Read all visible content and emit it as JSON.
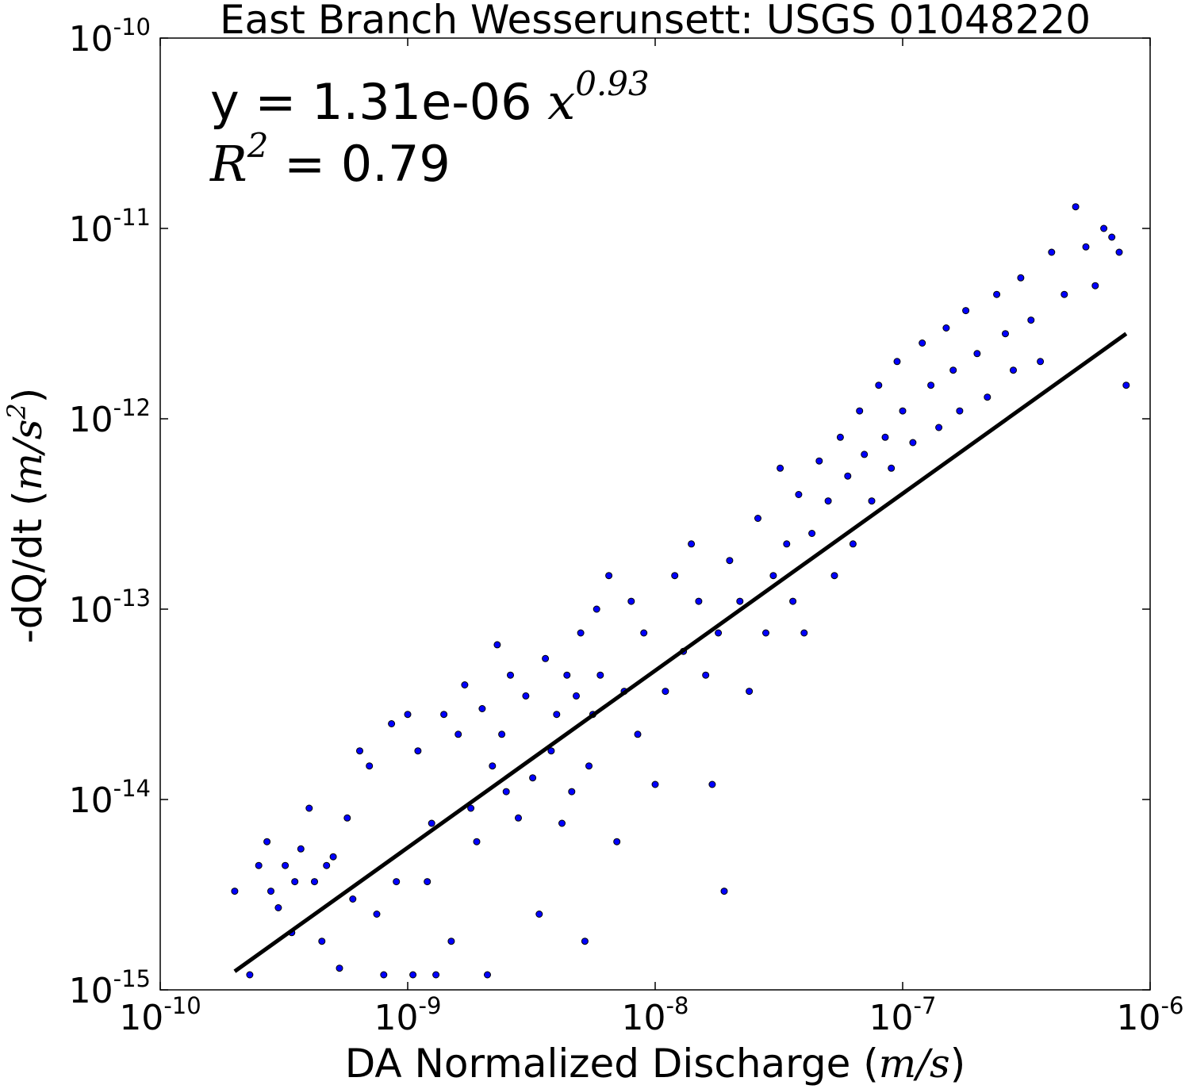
{
  "chart_data": {
    "type": "scatter",
    "title": "East Branch Wesserunsett: USGS 01048220",
    "xlabel": "DA Normalized Discharge",
    "xlabel_units": "m/s",
    "ylabel": "-dQ/dt",
    "ylabel_units": "m/s",
    "ylabel_units_power": "2",
    "xscale": "log",
    "yscale": "log",
    "xlim": [
      1e-10,
      1e-06
    ],
    "ylim": [
      1e-15,
      1e-10
    ],
    "x_ticks": [
      {
        "value": 1e-10,
        "base": "10",
        "exp": "-10"
      },
      {
        "value": 1e-09,
        "base": "10",
        "exp": "-9"
      },
      {
        "value": 1e-08,
        "base": "10",
        "exp": "-8"
      },
      {
        "value": 1e-07,
        "base": "10",
        "exp": "-7"
      },
      {
        "value": 1e-06,
        "base": "10",
        "exp": "-6"
      }
    ],
    "y_ticks": [
      {
        "value": 1e-10,
        "base": "10",
        "exp": "-10"
      },
      {
        "value": 1e-11,
        "base": "10",
        "exp": "-11"
      },
      {
        "value": 1e-12,
        "base": "10",
        "exp": "-12"
      },
      {
        "value": 1e-13,
        "base": "10",
        "exp": "-13"
      },
      {
        "value": 1e-14,
        "base": "10",
        "exp": "-14"
      },
      {
        "value": 1e-15,
        "base": "10",
        "exp": "-15"
      }
    ],
    "grid": false,
    "point_color": "#0000ff",
    "point_edge_color": "#000000",
    "fit_color": "#000000",
    "fit": {
      "coefficient": 1.31e-06,
      "exponent": 0.93,
      "x_range": [
        2e-10,
        8e-07
      ],
      "equation_prefix": "y = 1.31e-06",
      "equation_var": "x",
      "equation_exp": "0.93",
      "r2_var": "R",
      "r2_power": "2",
      "r2_text": " = 0.79",
      "r2": 0.79
    },
    "series": [
      {
        "points": [
          [
            2e-10,
            3.3e-15
          ],
          [
            2.3e-10,
            1.2e-15
          ],
          [
            2.5e-10,
            4.5e-15
          ],
          [
            2.7e-10,
            6e-15
          ],
          [
            2.8e-10,
            3.3e-15
          ],
          [
            3e-10,
            2.7e-15
          ],
          [
            3.2e-10,
            4.5e-15
          ],
          [
            3.4e-10,
            2e-15
          ],
          [
            3.5e-10,
            3.7e-15
          ],
          [
            3.7e-10,
            5.5e-15
          ],
          [
            4e-10,
            9e-15
          ],
          [
            4.2e-10,
            3.7e-15
          ],
          [
            4.5e-10,
            1.8e-15
          ],
          [
            4.7e-10,
            4.5e-15
          ],
          [
            5e-10,
            5e-15
          ],
          [
            5.3e-10,
            1.3e-15
          ],
          [
            5.7e-10,
            8e-15
          ],
          [
            6e-10,
            3e-15
          ],
          [
            6.4e-10,
            1.8e-14
          ],
          [
            7e-10,
            1.5e-14
          ],
          [
            7.5e-10,
            2.5e-15
          ],
          [
            8e-10,
            1.2e-15
          ],
          [
            8.6e-10,
            2.5e-14
          ],
          [
            9e-10,
            3.7e-15
          ],
          [
            1e-09,
            2.8e-14
          ],
          [
            1.05e-09,
            1.2e-15
          ],
          [
            1.1e-09,
            1.8e-14
          ],
          [
            1.2e-09,
            3.7e-15
          ],
          [
            1.25e-09,
            7.5e-15
          ],
          [
            1.3e-09,
            1.2e-15
          ],
          [
            1.4e-09,
            2.8e-14
          ],
          [
            1.5e-09,
            1.8e-15
          ],
          [
            1.6e-09,
            2.2e-14
          ],
          [
            1.7e-09,
            4e-14
          ],
          [
            1.8e-09,
            9e-15
          ],
          [
            1.9e-09,
            6e-15
          ],
          [
            2e-09,
            3e-14
          ],
          [
            2.1e-09,
            1.2e-15
          ],
          [
            2.2e-09,
            1.5e-14
          ],
          [
            2.3e-09,
            6.5e-14
          ],
          [
            2.4e-09,
            2.2e-14
          ],
          [
            2.5e-09,
            1.1e-14
          ],
          [
            2.6e-09,
            4.5e-14
          ],
          [
            2.8e-09,
            8e-15
          ],
          [
            3e-09,
            3.5e-14
          ],
          [
            3.2e-09,
            1.3e-14
          ],
          [
            3.4e-09,
            2.5e-15
          ],
          [
            3.6e-09,
            5.5e-14
          ],
          [
            3.8e-09,
            1.8e-14
          ],
          [
            4e-09,
            2.8e-14
          ],
          [
            4.2e-09,
            7.5e-15
          ],
          [
            4.4e-09,
            4.5e-14
          ],
          [
            4.6e-09,
            1.1e-14
          ],
          [
            4.8e-09,
            3.5e-14
          ],
          [
            5e-09,
            7.5e-14
          ],
          [
            5.2e-09,
            1.8e-15
          ],
          [
            5.4e-09,
            1.5e-14
          ],
          [
            5.6e-09,
            2.8e-14
          ],
          [
            5.8e-09,
            1e-13
          ],
          [
            6e-09,
            4.5e-14
          ],
          [
            6.5e-09,
            1.5e-13
          ],
          [
            7e-09,
            6e-15
          ],
          [
            7.5e-09,
            3.7e-14
          ],
          [
            8e-09,
            1.1e-13
          ],
          [
            8.5e-09,
            2.2e-14
          ],
          [
            9e-09,
            7.5e-14
          ],
          [
            1e-08,
            1.2e-14
          ],
          [
            1.1e-08,
            3.7e-14
          ],
          [
            1.2e-08,
            1.5e-13
          ],
          [
            1.3e-08,
            6e-14
          ],
          [
            1.4e-08,
            2.2e-13
          ],
          [
            1.5e-08,
            1.1e-13
          ],
          [
            1.6e-08,
            4.5e-14
          ],
          [
            1.7e-08,
            1.2e-14
          ],
          [
            1.8e-08,
            7.5e-14
          ],
          [
            1.9e-08,
            3.3e-15
          ],
          [
            2e-08,
            1.8e-13
          ],
          [
            2.2e-08,
            1.1e-13
          ],
          [
            2.4e-08,
            3.7e-14
          ],
          [
            2.6e-08,
            3e-13
          ],
          [
            2.8e-08,
            7.5e-14
          ],
          [
            3e-08,
            1.5e-13
          ],
          [
            3.2e-08,
            5.5e-13
          ],
          [
            3.4e-08,
            2.2e-13
          ],
          [
            3.6e-08,
            1.1e-13
          ],
          [
            3.8e-08,
            4e-13
          ],
          [
            4e-08,
            7.5e-14
          ],
          [
            4.3e-08,
            2.5e-13
          ],
          [
            4.6e-08,
            6e-13
          ],
          [
            5e-08,
            3.7e-13
          ],
          [
            5.3e-08,
            1.5e-13
          ],
          [
            5.6e-08,
            8e-13
          ],
          [
            6e-08,
            5e-13
          ],
          [
            6.3e-08,
            2.2e-13
          ],
          [
            6.7e-08,
            1.1e-12
          ],
          [
            7e-08,
            6.5e-13
          ],
          [
            7.5e-08,
            3.7e-13
          ],
          [
            8e-08,
            1.5e-12
          ],
          [
            8.5e-08,
            8e-13
          ],
          [
            9e-08,
            5.5e-13
          ],
          [
            9.5e-08,
            2e-12
          ],
          [
            1e-07,
            1.1e-12
          ],
          [
            1.1e-07,
            7.5e-13
          ],
          [
            1.2e-07,
            2.5e-12
          ],
          [
            1.3e-07,
            1.5e-12
          ],
          [
            1.4e-07,
            9e-13
          ],
          [
            1.5e-07,
            3e-12
          ],
          [
            1.6e-07,
            1.8e-12
          ],
          [
            1.7e-07,
            1.1e-12
          ],
          [
            1.8e-07,
            3.7e-12
          ],
          [
            2e-07,
            2.2e-12
          ],
          [
            2.2e-07,
            1.3e-12
          ],
          [
            2.4e-07,
            4.5e-12
          ],
          [
            2.6e-07,
            2.8e-12
          ],
          [
            2.8e-07,
            1.8e-12
          ],
          [
            3e-07,
            5.5e-12
          ],
          [
            3.3e-07,
            3.3e-12
          ],
          [
            3.6e-07,
            2e-12
          ],
          [
            4e-07,
            7.5e-12
          ],
          [
            4.5e-07,
            4.5e-12
          ],
          [
            5e-07,
            1.3e-11
          ],
          [
            5.5e-07,
            8e-12
          ],
          [
            6e-07,
            5e-12
          ],
          [
            6.5e-07,
            1e-11
          ],
          [
            7e-07,
            9e-12
          ],
          [
            7.5e-07,
            7.5e-12
          ],
          [
            8e-07,
            1.5e-12
          ]
        ]
      }
    ]
  }
}
